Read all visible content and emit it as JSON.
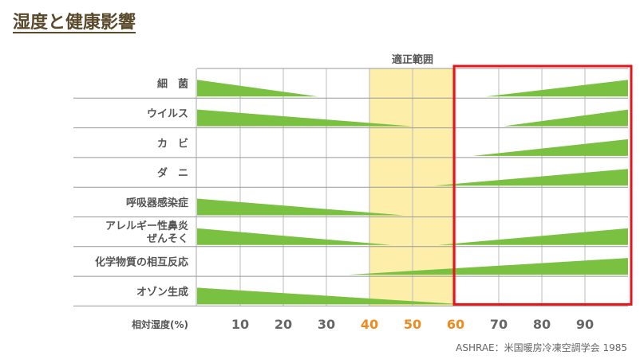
{
  "page": {
    "title": "湿度と健康影響"
  },
  "chart_data": {
    "type": "area",
    "title": "湿度と健康影響",
    "xlabel": "相対湿度(%)",
    "xlim": [
      0,
      100
    ],
    "x_ticks": [
      10,
      20,
      30,
      40,
      50,
      60,
      70,
      80,
      90
    ],
    "highlight_ticks": [
      40,
      50,
      60
    ],
    "optimal_range": {
      "label": "適正範囲",
      "from": 40,
      "to": 60
    },
    "highlight_box": {
      "from": 60,
      "to": 100,
      "color": "#e8141b"
    },
    "source": "ASHRAE：米国暖房冷凍空調学会 1985",
    "colors": {
      "fill": "#7ac142",
      "optimal_band": "#fdeeaa",
      "tick_highlight": "#f08a1c",
      "grid": "#999999"
    },
    "categories": [
      {
        "label": "細　菌",
        "segments": [
          {
            "from": 0,
            "to": 28,
            "direction": "decreasing"
          },
          {
            "from": 67,
            "to": 100,
            "direction": "increasing"
          }
        ]
      },
      {
        "label": "ウイルス",
        "segments": [
          {
            "from": 0,
            "to": 50,
            "direction": "decreasing"
          },
          {
            "from": 71,
            "to": 100,
            "direction": "increasing"
          }
        ]
      },
      {
        "label": "カ　ビ",
        "segments": [
          {
            "from": 64,
            "to": 100,
            "direction": "increasing"
          }
        ]
      },
      {
        "label": "ダ　ニ",
        "segments": [
          {
            "from": 55,
            "to": 100,
            "direction": "increasing"
          }
        ]
      },
      {
        "label": "呼吸器感染症",
        "segments": [
          {
            "from": 0,
            "to": 48,
            "direction": "decreasing"
          }
        ]
      },
      {
        "label": "アレルギー性鼻炎\nぜんそく",
        "segments": [
          {
            "from": 0,
            "to": 45,
            "direction": "decreasing"
          },
          {
            "from": 56,
            "to": 100,
            "direction": "increasing"
          }
        ]
      },
      {
        "label": "化学物質の相互反応",
        "segments": [
          {
            "from": 35,
            "to": 100,
            "direction": "increasing"
          }
        ]
      },
      {
        "label": "オゾン生成",
        "segments": [
          {
            "from": 0,
            "to": 62,
            "direction": "decreasing"
          }
        ]
      }
    ]
  }
}
